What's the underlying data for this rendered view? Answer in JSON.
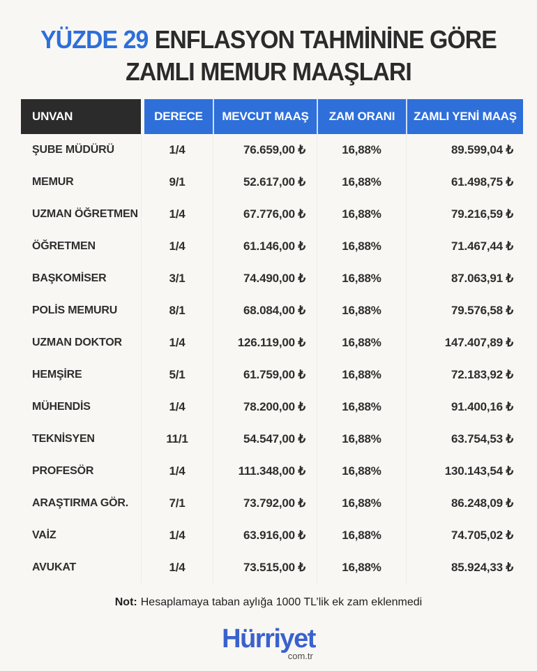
{
  "title": {
    "highlight": "YÜZDE 29",
    "line1_rest": "ENFLASYON TAHMİNİNE GÖRE",
    "line2": "ZAMLI MEMUR MAAŞLARI"
  },
  "chart_data": {
    "type": "table",
    "title": "YÜZDE 29 ENFLASYON TAHMİNİNE GÖRE ZAMLI MEMUR MAAŞLARI",
    "columns": [
      "UNVAN",
      "DERECE",
      "MEVCUT MAAŞ",
      "ZAM ORANI",
      "ZAMLI YENİ MAAŞ"
    ],
    "rows": [
      [
        "ŞUBE MÜDÜRÜ",
        "1/4",
        "76.659,00 ₺",
        "16,88%",
        "89.599,04 ₺"
      ],
      [
        "MEMUR",
        "9/1",
        "52.617,00 ₺",
        "16,88%",
        "61.498,75 ₺"
      ],
      [
        "UZMAN ÖĞRETMEN",
        "1/4",
        "67.776,00 ₺",
        "16,88%",
        "79.216,59 ₺"
      ],
      [
        "ÖĞRETMEN",
        "1/4",
        "61.146,00 ₺",
        "16,88%",
        "71.467,44 ₺"
      ],
      [
        "BAŞKOMİSER",
        "3/1",
        "74.490,00 ₺",
        "16,88%",
        "87.063,91 ₺"
      ],
      [
        "POLİS MEMURU",
        "8/1",
        "68.084,00 ₺",
        "16,88%",
        "79.576,58 ₺"
      ],
      [
        "UZMAN DOKTOR",
        "1/4",
        "126.119,00 ₺",
        "16,88%",
        "147.407,89 ₺"
      ],
      [
        "HEMŞİRE",
        "5/1",
        "61.759,00 ₺",
        "16,88%",
        "72.183,92 ₺"
      ],
      [
        "MÜHENDİS",
        "1/4",
        "78.200,00 ₺",
        "16,88%",
        "91.400,16 ₺"
      ],
      [
        "TEKNİSYEN",
        "11/1",
        "54.547,00 ₺",
        "16,88%",
        "63.754,53 ₺"
      ],
      [
        "PROFESÖR",
        "1/4",
        "111.348,00 ₺",
        "16,88%",
        "130.143,54 ₺"
      ],
      [
        "ARAŞTIRMA GÖR.",
        "7/1",
        "73.792,00 ₺",
        "16,88%",
        "86.248,09 ₺"
      ],
      [
        "VAİZ",
        "1/4",
        "63.916,00 ₺",
        "16,88%",
        "74.705,02 ₺"
      ],
      [
        "AVUKAT",
        "1/4",
        "73.515,00 ₺",
        "16,88%",
        "85.924,33 ₺"
      ]
    ]
  },
  "note": {
    "label": "Not:",
    "text": "Hesaplamaya taban aylığa 1000 TL’lik ek zam eklenmedi"
  },
  "logo": {
    "wordmark": "Hürriyet",
    "tld": "com.tr"
  },
  "colors": {
    "accent_blue": "#2e6fd9",
    "header_dark": "#2b2b2b",
    "logo_blue": "#3a62cd",
    "background": "#f8f7f4",
    "text": "#2e2e2e"
  }
}
